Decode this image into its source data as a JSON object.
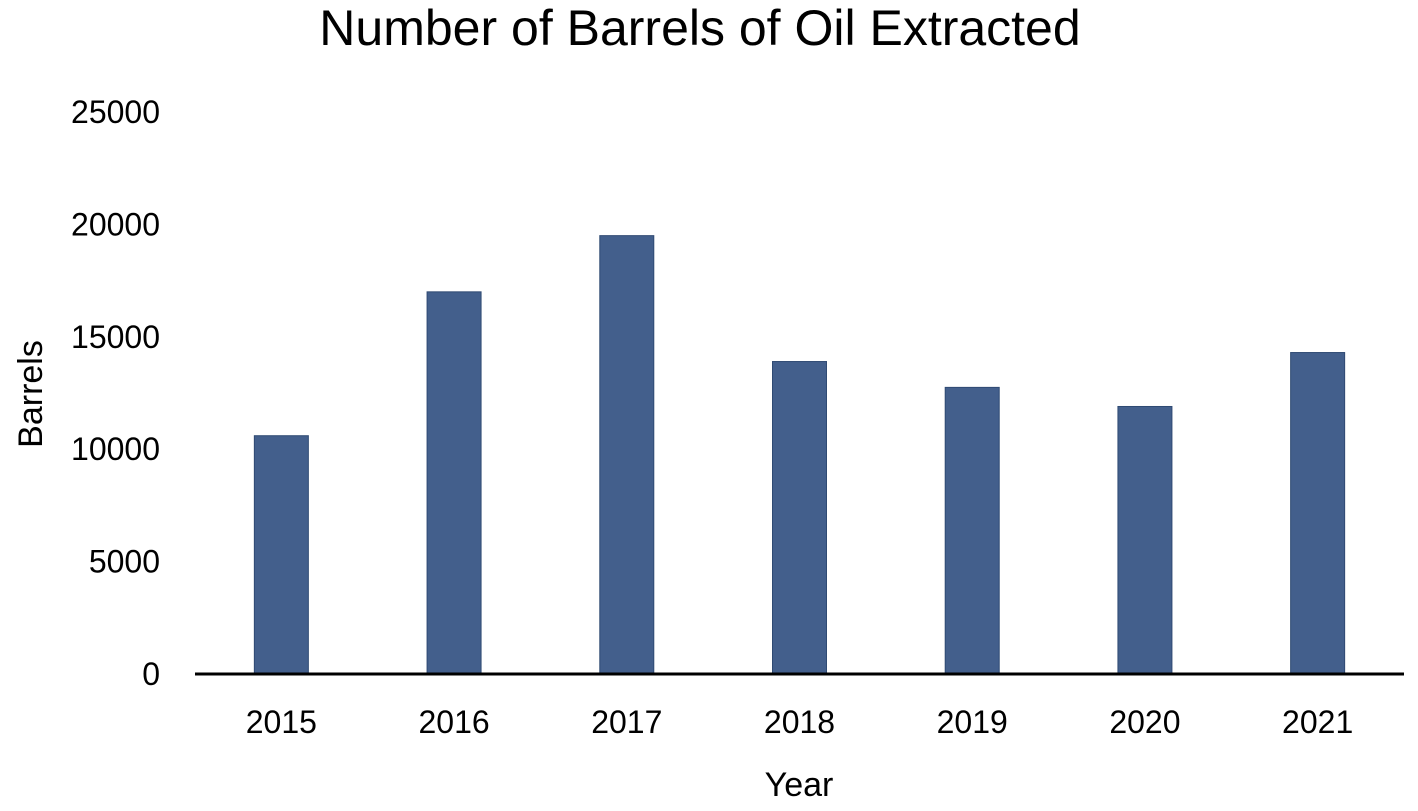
{
  "chart_data": {
    "type": "bar",
    "title": "Number of Barrels of Oil Extracted",
    "xlabel": "Year",
    "ylabel": "Barrels",
    "categories": [
      "2015",
      "2016",
      "2017",
      "2018",
      "2019",
      "2020",
      "2021"
    ],
    "values": [
      10600,
      17000,
      19500,
      13900,
      12750,
      11900,
      14300
    ],
    "ylim": [
      0,
      25000
    ],
    "yticks": [
      0,
      5000,
      10000,
      15000,
      20000,
      25000
    ],
    "grid": false,
    "legend": "none",
    "bar_color": "#435f8c",
    "axis_color": "#000000"
  }
}
